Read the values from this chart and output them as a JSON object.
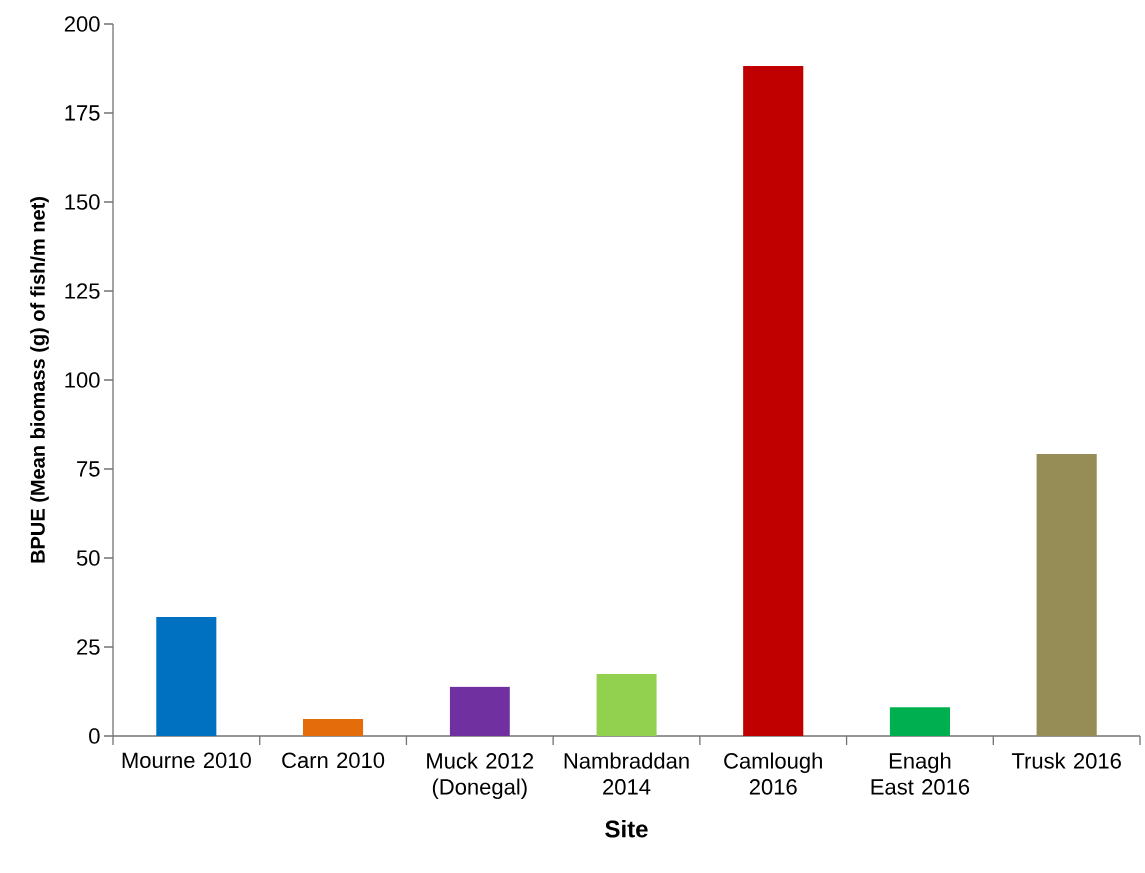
{
  "chart_data": {
    "type": "bar",
    "xlabel": "Site",
    "ylabel": "BPUE (Mean biomass (g) of fish/m net)",
    "categories": [
      "Mourne 2010",
      "Carn 2010",
      "Muck 2012 (Donegal)",
      "Nambraddan 2014",
      "Camlough 2016",
      "Enagh East 2016",
      "Trusk 2016"
    ],
    "values": [
      33.4,
      4.8,
      13.8,
      17.4,
      188.2,
      8.1,
      79.2
    ],
    "colors": [
      "#0070c0",
      "#e46c0a",
      "#7030a0",
      "#92d050",
      "#c00000",
      "#00b050",
      "#968c55"
    ],
    "ylim": [
      0,
      200
    ],
    "yticks": [
      0,
      25,
      50,
      75,
      100,
      125,
      150,
      175,
      200
    ]
  }
}
